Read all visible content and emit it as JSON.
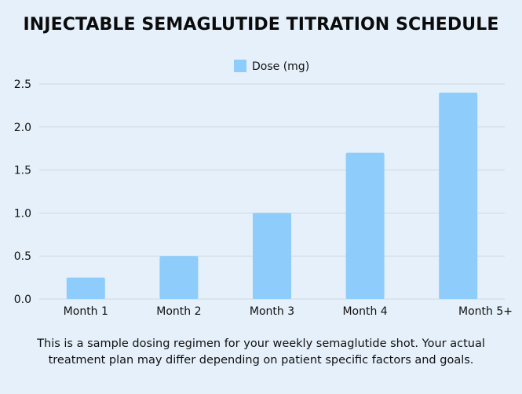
{
  "chart_data": {
    "type": "bar",
    "title": "INJECTABLE SEMAGLUTIDE TITRATION SCHEDULE",
    "categories": [
      "Month 1",
      "Month 2",
      "Month 3",
      "Month 4",
      "Month 5+"
    ],
    "series": [
      {
        "name": "Dose (mg)",
        "color": "#8ecdfb",
        "values": [
          0.25,
          0.5,
          1.0,
          1.7,
          2.4
        ]
      }
    ],
    "xlabel": "",
    "ylabel": "",
    "ylim": [
      0,
      2.5
    ],
    "yticks": [
      "0.0",
      "0.5",
      "1.0",
      "1.5",
      "2.0",
      "2.5"
    ],
    "grid": true,
    "legend_position": "top-center"
  },
  "caption": {
    "line1": "This is a sample dosing regimen for your weekly semaglutide shot. Your actual",
    "line2": "treatment plan may differ depending on patient specific factors and goals."
  },
  "colors": {
    "background": "#e5f0fa",
    "bar": "#8ecdfb",
    "grid": "#cfd8e0",
    "text": "#111111"
  }
}
